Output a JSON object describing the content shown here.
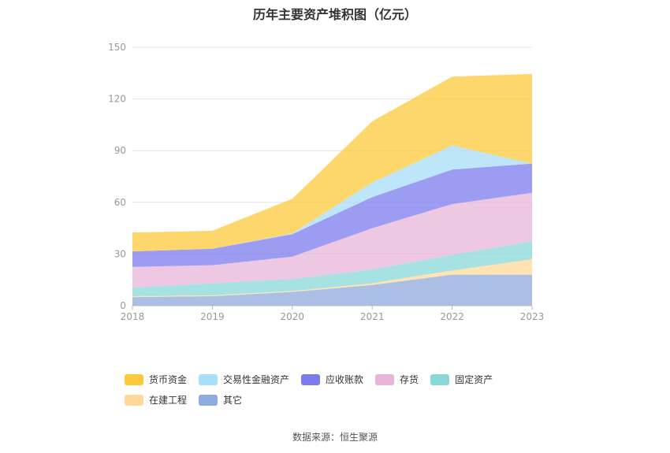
{
  "chart_data": {
    "type": "area",
    "stacked": true,
    "title": "历年主要资产堆积图（亿元）",
    "categories": [
      "2018",
      "2019",
      "2020",
      "2021",
      "2022",
      "2023"
    ],
    "ylim": [
      0,
      150
    ],
    "yticks": [
      0,
      30,
      60,
      90,
      120,
      150
    ],
    "grid": true,
    "legend_position": "bottom",
    "series": [
      {
        "name": "其它",
        "color": "#8faadc",
        "values": [
          5,
          5.5,
          8,
          12,
          18,
          18
        ]
      },
      {
        "name": "在建工程",
        "color": "#ffd99a",
        "values": [
          0.5,
          0.5,
          0.5,
          1,
          2.5,
          9
        ]
      },
      {
        "name": "固定资产",
        "color": "#88d8d8",
        "values": [
          5,
          7,
          7,
          8,
          9,
          10.5
        ]
      },
      {
        "name": "存货",
        "color": "#e8b4d8",
        "values": [
          12,
          10.5,
          13,
          24,
          29.5,
          28
        ]
      },
      {
        "name": "应收账款",
        "color": "#7b7bef",
        "values": [
          9,
          9.5,
          13,
          18,
          20,
          17
        ]
      },
      {
        "name": "交易性金融资产",
        "color": "#a8def8",
        "values": [
          0,
          0,
          0.5,
          8.5,
          14,
          0
        ]
      },
      {
        "name": "货币资金",
        "color": "#fcc93a",
        "values": [
          11,
          10.5,
          20,
          35.5,
          40,
          52
        ]
      }
    ],
    "legend_order": [
      "货币资金",
      "交易性金融资产",
      "应收账款",
      "存货",
      "固定资产",
      "在建工程",
      "其它"
    ]
  },
  "source": "数据来源：恒生聚源"
}
